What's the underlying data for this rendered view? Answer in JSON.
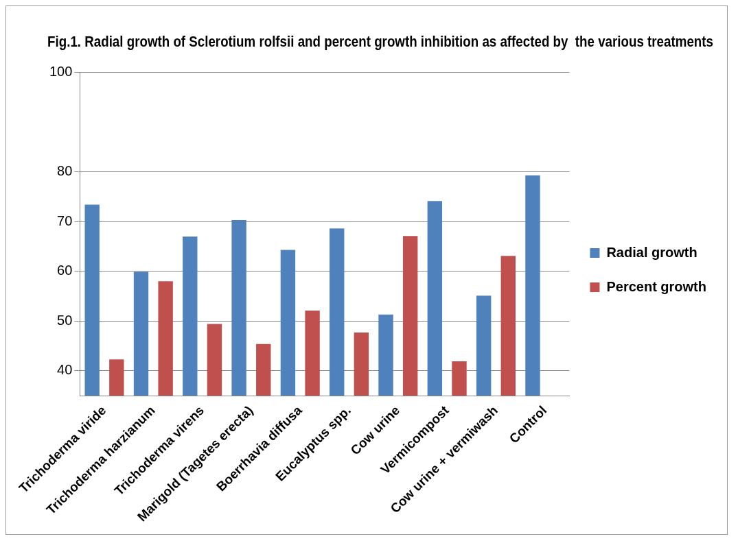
{
  "chart_data": {
    "type": "bar",
    "title": "Fig.1. Radial growth of Sclerotium rolfsii and percent growth inhibition as affected by  the various treatments",
    "categories": [
      "Trichoderma viride",
      "Trichoderma harzianum",
      "Trichoderma virens",
      "Marigold (Tagetes erecta)",
      "Boerrhavia diffusa",
      "Eucalyptus spp.",
      "Cow urine",
      "Vermicompost",
      "Cow urine + vermiwash",
      "Control"
    ],
    "series": [
      {
        "name": "Radial growth",
        "color": "#4f81bd",
        "values": [
          73.4,
          59.9,
          67.0,
          70.3,
          64.3,
          68.6,
          51.3,
          74.1,
          55.1,
          79.3
        ]
      },
      {
        "name": "Percent growth",
        "color": "#c0504d",
        "values": [
          42.3,
          58.0,
          49.4,
          45.4,
          52.1,
          47.7,
          67.1,
          41.9,
          63.1,
          null
        ]
      }
    ],
    "ylim": [
      35,
      100
    ],
    "yticks": [
      40,
      50,
      60,
      70,
      80,
      100
    ],
    "grid": "y",
    "legend": "right"
  }
}
